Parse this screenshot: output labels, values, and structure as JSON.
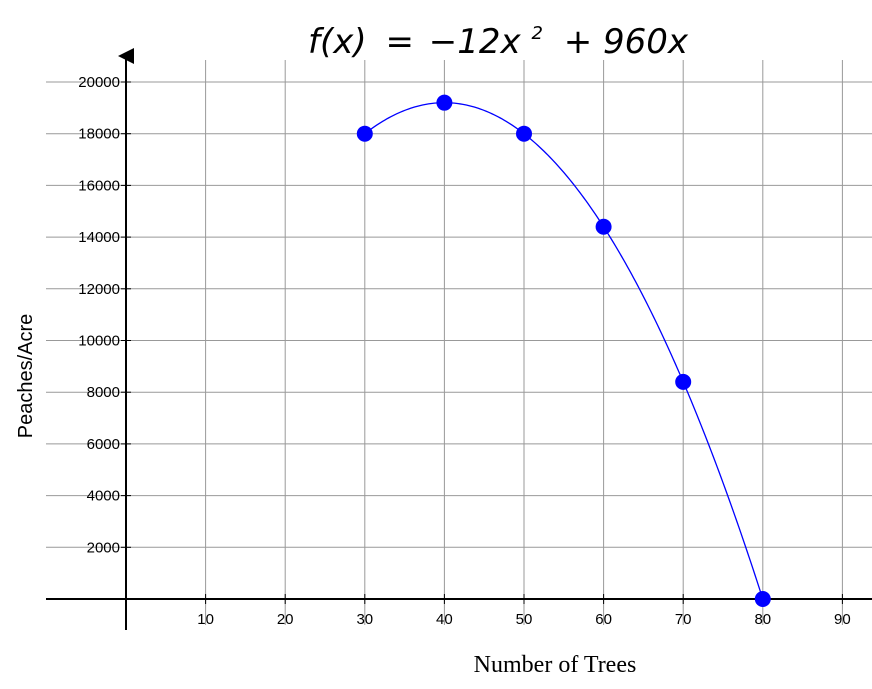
{
  "chart_data": {
    "type": "scatter",
    "title": "f(x) = −12x² + 960x",
    "title_parts": {
      "lhs": "f(x)",
      "eq": "=",
      "coef": "−12x",
      "exp": "2",
      "rest": "+ 960x"
    },
    "xlabel": "Number  of Trees",
    "ylabel": "Peaches/Acre",
    "xlim": [
      -10,
      95
    ],
    "ylim": [
      -1000,
      21000
    ],
    "x_ticks": [
      10,
      20,
      30,
      40,
      50,
      60,
      70,
      80,
      90
    ],
    "y_ticks": [
      2000,
      4000,
      6000,
      8000,
      10000,
      12000,
      14000,
      16000,
      18000,
      20000
    ],
    "grid": true,
    "curve": {
      "a": -12,
      "b": 960,
      "c": 0,
      "x_start": 30,
      "x_end": 80,
      "color": "#0000ff"
    },
    "points": {
      "x": [
        30,
        40,
        50,
        60,
        70,
        80
      ],
      "y": [
        18000,
        19200,
        18000,
        14400,
        8400,
        0
      ],
      "color": "#0000ff"
    },
    "colors": {
      "grid": "#999999",
      "axis": "#000000"
    }
  }
}
